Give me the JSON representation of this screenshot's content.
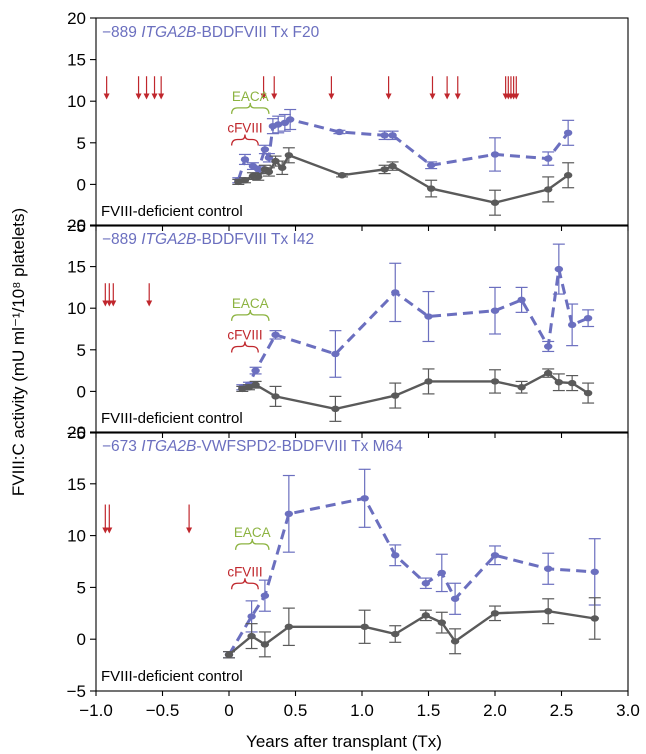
{
  "figure": {
    "ylabel": "FVIII:C activity (mU ml⁻¹/10⁸ platelets)",
    "xlabel": "Years after transplant (Tx)",
    "colors": {
      "treated": "#6b6fbf",
      "control": "#5a5a5a",
      "arrow": "#c0272d",
      "eaca": "#8cb340",
      "cfviii": "#c0272d"
    }
  },
  "chart_data": [
    {
      "type": "line",
      "title_parts": [
        {
          "text": "−889 ",
          "italic": false
        },
        {
          "text": "ITGA2B",
          "italic": true
        },
        {
          "text": "-BDDFVIII Tx F20",
          "italic": false
        }
      ],
      "ylim": [
        -5,
        20
      ],
      "yticks": [
        -5,
        0,
        5,
        10,
        15,
        20
      ],
      "control_label": "FVIII-deficient control",
      "eaca": {
        "label": "EACA",
        "x0": 0.02,
        "x1": 0.3
      },
      "cfviii": {
        "label": "cFVIII",
        "x0": 0.02,
        "x1": 0.22
      },
      "arrows": [
        -0.92,
        -0.68,
        -0.62,
        -0.56,
        -0.51,
        0.26,
        0.34,
        0.77,
        1.2,
        1.53,
        1.64,
        1.72,
        2.08,
        2.1,
        2.12,
        2.14,
        2.16
      ],
      "series": [
        {
          "name": "treated",
          "x": [
            0.07,
            0.12,
            0.18,
            0.22,
            0.27,
            0.3,
            0.33,
            0.37,
            0.42,
            0.46,
            0.83,
            1.17,
            1.23,
            1.52,
            2.0,
            2.4,
            2.55
          ],
          "y": [
            0.5,
            3.0,
            2.2,
            1.8,
            4.2,
            3.2,
            7.0,
            7.2,
            7.4,
            7.8,
            6.3,
            5.9,
            5.9,
            2.3,
            3.6,
            3.1,
            6.2
          ],
          "err": [
            0.3,
            0.6,
            0.4,
            0.4,
            0.5,
            0.5,
            0.9,
            1.0,
            1.0,
            1.2,
            0.2,
            0.5,
            0.5,
            0.4,
            2.0,
            0.8,
            1.5
          ]
        },
        {
          "name": "control",
          "x": [
            0.07,
            0.12,
            0.18,
            0.22,
            0.27,
            0.3,
            0.35,
            0.4,
            0.45,
            0.85,
            1.17,
            1.23,
            1.52,
            2.0,
            2.4,
            2.55
          ],
          "y": [
            0.3,
            0.5,
            1.0,
            0.9,
            1.8,
            1.5,
            2.8,
            2.0,
            3.5,
            1.1,
            1.8,
            2.2,
            -0.5,
            -2.2,
            -0.6,
            1.1
          ],
          "err": [
            0.3,
            0.3,
            0.4,
            0.4,
            0.5,
            0.5,
            0.6,
            0.8,
            0.9,
            0.2,
            0.5,
            0.5,
            1.0,
            1.5,
            1.5,
            1.5
          ]
        }
      ]
    },
    {
      "type": "line",
      "title_parts": [
        {
          "text": "−889 ",
          "italic": false
        },
        {
          "text": "ITGA2B",
          "italic": true
        },
        {
          "text": "-BDDFVIII Tx I42",
          "italic": false
        }
      ],
      "ylim": [
        -5,
        20
      ],
      "yticks": [
        -5,
        0,
        5,
        10,
        15,
        20
      ],
      "control_label": "FVIII-deficient control",
      "eaca": {
        "label": "EACA",
        "x0": 0.02,
        "x1": 0.3
      },
      "cfviii": {
        "label": "cFVIII",
        "x0": 0.02,
        "x1": 0.22
      },
      "arrows": [
        -0.93,
        -0.9,
        -0.87,
        -0.6
      ],
      "series": [
        {
          "name": "treated",
          "x": [
            0.1,
            0.15,
            0.2,
            0.35,
            0.8,
            1.25,
            1.5,
            2.0,
            2.2,
            2.4,
            2.48,
            2.58,
            2.7
          ],
          "y": [
            0.5,
            0.8,
            2.5,
            6.8,
            4.5,
            11.9,
            9.0,
            9.7,
            11.0,
            5.4,
            14.7,
            8.0,
            8.8
          ],
          "err": [
            0.3,
            0.3,
            0.4,
            0.5,
            2.8,
            3.5,
            3.0,
            2.8,
            1.5,
            0.6,
            3.0,
            2.5,
            1.0
          ]
        },
        {
          "name": "control",
          "x": [
            0.1,
            0.15,
            0.2,
            0.35,
            0.8,
            1.25,
            1.5,
            2.0,
            2.2,
            2.4,
            2.48,
            2.58,
            2.7
          ],
          "y": [
            0.3,
            0.5,
            0.8,
            -0.6,
            -2.1,
            -0.5,
            1.2,
            1.2,
            0.5,
            2.2,
            1.1,
            1.0,
            -0.2
          ],
          "err": [
            0.3,
            0.3,
            0.4,
            1.2,
            1.5,
            1.5,
            1.5,
            1.4,
            0.7,
            0.5,
            1.0,
            0.9,
            1.2
          ]
        }
      ]
    },
    {
      "type": "line",
      "title_parts": [
        {
          "text": "−673 ",
          "italic": false
        },
        {
          "text": "ITGA2B",
          "italic": true
        },
        {
          "text": "-VWFSPD2-BDDFVIII Tx M64",
          "italic": false
        }
      ],
      "ylim": [
        -5,
        20
      ],
      "yticks": [
        -5,
        0,
        5,
        10,
        15,
        20
      ],
      "control_label": "FVIII-deficient control",
      "eaca": {
        "label": "EACA",
        "x0": 0.05,
        "x1": 0.3
      },
      "cfviii": {
        "label": "cFVIII",
        "x0": 0.02,
        "x1": 0.22
      },
      "arrows": [
        -0.93,
        -0.9,
        -0.3
      ],
      "series": [
        {
          "name": "treated",
          "x": [
            0.0,
            0.17,
            0.27,
            0.45,
            1.02,
            1.25,
            1.48,
            1.6,
            1.7,
            2.0,
            2.4,
            2.75
          ],
          "y": [
            -1.5,
            2.2,
            4.2,
            12.1,
            13.6,
            8.1,
            5.4,
            6.4,
            3.9,
            8.1,
            6.8,
            6.5
          ],
          "err": [
            0.3,
            1.5,
            1.5,
            3.7,
            2.8,
            1.0,
            0.5,
            1.8,
            1.5,
            0.9,
            1.5,
            3.2
          ]
        },
        {
          "name": "control",
          "x": [
            0.0,
            0.17,
            0.27,
            0.45,
            1.02,
            1.25,
            1.48,
            1.6,
            1.7,
            2.0,
            2.4,
            2.75
          ],
          "y": [
            -1.5,
            0.3,
            -0.5,
            1.2,
            1.2,
            0.5,
            2.3,
            1.6,
            -0.2,
            2.5,
            2.7,
            2.0
          ],
          "err": [
            0.3,
            1.2,
            1.2,
            1.8,
            1.6,
            0.8,
            0.5,
            1.0,
            1.2,
            0.7,
            1.2,
            2.0
          ]
        }
      ]
    }
  ],
  "x_axis": {
    "xlim": [
      -1.0,
      3.0
    ],
    "ticks": [
      -1.0,
      -0.5,
      0,
      0.5,
      1.0,
      1.5,
      2.0,
      2.5,
      3.0
    ],
    "tick_labels": [
      "−1.0",
      "−0.5",
      "0",
      "0.5",
      "1.0",
      "1.5",
      "2.0",
      "2.5",
      "3.0"
    ]
  }
}
